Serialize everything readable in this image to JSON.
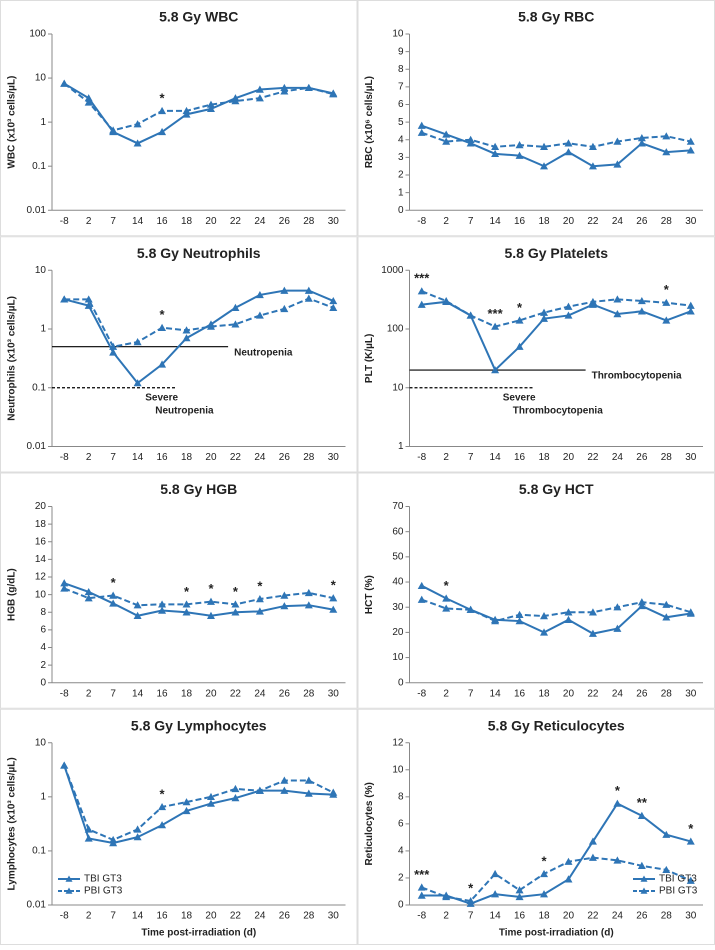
{
  "chart_data": [
    {
      "type": "line",
      "title": "5.8 Gy WBC",
      "ylabel": "WBC (x10³ cells/µL)",
      "log": true,
      "categories": [
        -8,
        2,
        7,
        14,
        16,
        18,
        20,
        22,
        24,
        26,
        28,
        30
      ],
      "ylim": [
        0.01,
        100
      ],
      "yticks": [
        0.01,
        0.1,
        1,
        10,
        100
      ],
      "series": [
        {
          "name": "TBI GT3",
          "color": "#2e75b6",
          "dashed": false,
          "values": [
            7.5,
            3.5,
            0.6,
            0.33,
            0.6,
            1.5,
            2.0,
            3.5,
            5.5,
            6,
            6,
            4.5
          ]
        },
        {
          "name": "PBI GT3",
          "color": "#2e75b6",
          "dashed": true,
          "values": [
            7.5,
            2.8,
            0.65,
            0.9,
            1.8,
            1.8,
            2.5,
            3,
            3.5,
            5,
            6,
            4.3
          ]
        }
      ],
      "annotations": [
        {
          "x": 16,
          "text": "*"
        }
      ]
    },
    {
      "type": "line",
      "title": "5.8 Gy RBC",
      "ylabel": "RBC (x10⁶ cells/µL)",
      "log": false,
      "categories": [
        -8,
        2,
        7,
        14,
        16,
        18,
        20,
        22,
        24,
        26,
        28,
        30
      ],
      "ylim": [
        0,
        10
      ],
      "yticks": [
        0,
        1,
        2,
        3,
        4,
        5,
        6,
        7,
        8,
        9,
        10
      ],
      "series": [
        {
          "name": "TBI GT3",
          "color": "#2e75b6",
          "dashed": false,
          "values": [
            4.8,
            4.3,
            3.8,
            3.2,
            3.1,
            2.5,
            3.3,
            2.5,
            2.6,
            3.8,
            3.3,
            3.4
          ]
        },
        {
          "name": "PBI GT3",
          "color": "#2e75b6",
          "dashed": true,
          "values": [
            4.4,
            3.9,
            4.0,
            3.6,
            3.7,
            3.6,
            3.8,
            3.6,
            3.9,
            4.1,
            4.2,
            3.9
          ]
        }
      ]
    },
    {
      "type": "line",
      "title": "5.8 Gy Neutrophils",
      "ylabel": "Neutrophils (x10³ cells/µL)",
      "log": true,
      "categories": [
        -8,
        2,
        7,
        14,
        16,
        18,
        20,
        22,
        24,
        26,
        28,
        30
      ],
      "ylim": [
        0.01,
        10
      ],
      "yticks": [
        0.01,
        0.1,
        1,
        10
      ],
      "series": [
        {
          "name": "TBI GT3",
          "color": "#2e75b6",
          "dashed": false,
          "values": [
            3.2,
            2.5,
            0.4,
            0.12,
            0.25,
            0.7,
            1.2,
            2.3,
            3.8,
            4.5,
            4.5,
            3.0
          ]
        },
        {
          "name": "PBI GT3",
          "color": "#2e75b6",
          "dashed": true,
          "values": [
            3.2,
            3.2,
            0.5,
            0.6,
            1.05,
            0.95,
            1.1,
            1.2,
            1.7,
            2.2,
            3.3,
            2.3
          ]
        }
      ],
      "annotations": [
        {
          "x": 16,
          "text": "*"
        }
      ],
      "reference_lines": [
        {
          "value": 0.5,
          "dashed": false,
          "label": [
            "Neutropenia"
          ]
        },
        {
          "value": 0.1,
          "dashed": true,
          "label": [
            "Severe",
            "Neutropenia"
          ]
        }
      ]
    },
    {
      "type": "line",
      "title": "5.8 Gy Platelets",
      "ylabel": "PLT (K/µL)",
      "log": true,
      "categories": [
        -8,
        2,
        7,
        14,
        16,
        18,
        20,
        22,
        24,
        26,
        28,
        30
      ],
      "ylim": [
        1,
        1000
      ],
      "yticks": [
        1,
        10,
        100,
        1000
      ],
      "series": [
        {
          "name": "TBI GT3",
          "color": "#2e75b6",
          "dashed": false,
          "values": [
            260,
            290,
            170,
            20,
            50,
            150,
            170,
            260,
            180,
            200,
            140,
            200
          ]
        },
        {
          "name": "PBI GT3",
          "color": "#2e75b6",
          "dashed": true,
          "values": [
            440,
            300,
            170,
            110,
            140,
            190,
            240,
            290,
            320,
            300,
            280,
            250
          ]
        }
      ],
      "annotations": [
        {
          "x": -8,
          "text": "***"
        },
        {
          "x": 14,
          "text": "***"
        },
        {
          "x": 16,
          "text": "*"
        },
        {
          "x": 28,
          "text": "*"
        }
      ],
      "reference_lines": [
        {
          "value": 20,
          "dashed": false,
          "label": [
            "Thrombocytopenia"
          ]
        },
        {
          "value": 10,
          "dashed": true,
          "label": [
            "Severe",
            "Thrombocytopenia"
          ]
        }
      ]
    },
    {
      "type": "line",
      "title": "5.8 Gy HGB",
      "ylabel": "HGB (g/dL)",
      "log": false,
      "categories": [
        -8,
        2,
        7,
        14,
        16,
        18,
        20,
        22,
        24,
        26,
        28,
        30
      ],
      "ylim": [
        0,
        20
      ],
      "yticks": [
        0,
        2,
        4,
        6,
        8,
        10,
        12,
        14,
        16,
        18,
        20
      ],
      "series": [
        {
          "name": "TBI GT3",
          "color": "#2e75b6",
          "dashed": false,
          "values": [
            11.3,
            10.3,
            9,
            7.6,
            8.2,
            8,
            7.6,
            8,
            8.1,
            8.7,
            8.8,
            8.3
          ]
        },
        {
          "name": "PBI GT3",
          "color": "#2e75b6",
          "dashed": true,
          "values": [
            10.7,
            9.6,
            9.9,
            8.8,
            8.9,
            8.9,
            9.2,
            8.9,
            9.5,
            9.9,
            10.2,
            9.6
          ]
        }
      ],
      "annotations": [
        {
          "x": 7,
          "text": "*"
        },
        {
          "x": 18,
          "text": "*"
        },
        {
          "x": 20,
          "text": "*"
        },
        {
          "x": 22,
          "text": "*"
        },
        {
          "x": 24,
          "text": "*"
        },
        {
          "x": 30,
          "text": "*"
        }
      ]
    },
    {
      "type": "line",
      "title": "5.8 Gy HCT",
      "ylabel": "HCT (%)",
      "log": false,
      "categories": [
        -8,
        2,
        7,
        14,
        16,
        18,
        20,
        22,
        24,
        26,
        28,
        30
      ],
      "ylim": [
        0,
        70
      ],
      "yticks": [
        0,
        10,
        20,
        30,
        40,
        50,
        60,
        70
      ],
      "series": [
        {
          "name": "TBI GT3",
          "color": "#2e75b6",
          "dashed": false,
          "values": [
            38.5,
            33.5,
            29,
            25,
            24.5,
            20,
            25,
            19.5,
            21.5,
            30.5,
            26,
            27.5
          ]
        },
        {
          "name": "PBI GT3",
          "color": "#2e75b6",
          "dashed": true,
          "values": [
            33,
            29.5,
            29,
            24.5,
            27,
            26.5,
            28,
            28,
            30,
            32,
            31,
            28
          ]
        }
      ],
      "annotations": [
        {
          "x": 2,
          "text": "*"
        }
      ]
    },
    {
      "type": "line",
      "title": "5.8 Gy Lymphocytes",
      "ylabel": "Lymphocytes (x10³ cells/µL)",
      "xlabel": "Time post-irradiation (d)",
      "log": true,
      "categories": [
        -8,
        2,
        7,
        14,
        16,
        18,
        20,
        22,
        24,
        26,
        28,
        30
      ],
      "ylim": [
        0.01,
        10
      ],
      "yticks": [
        0.01,
        0.1,
        1,
        10
      ],
      "legend": "lower left",
      "series": [
        {
          "name": "TBI GT3",
          "color": "#2e75b6",
          "dashed": false,
          "values": [
            3.8,
            0.17,
            0.14,
            0.18,
            0.3,
            0.55,
            0.75,
            0.95,
            1.3,
            1.3,
            1.15,
            1.1
          ]
        },
        {
          "name": "PBI GT3",
          "color": "#2e75b6",
          "dashed": true,
          "values": [
            3.8,
            0.25,
            0.16,
            0.25,
            0.65,
            0.8,
            1.0,
            1.4,
            1.3,
            2.0,
            2.0,
            1.2
          ]
        }
      ],
      "annotations": [
        {
          "x": 16,
          "text": "*"
        }
      ]
    },
    {
      "type": "line",
      "title": "5.8 Gy Reticulocytes",
      "ylabel": "Reticulocytes (%)",
      "xlabel": "Time post-irradiation (d)",
      "log": false,
      "categories": [
        -8,
        2,
        7,
        14,
        16,
        18,
        20,
        22,
        24,
        26,
        28,
        30
      ],
      "ylim": [
        0,
        12
      ],
      "yticks": [
        0,
        2,
        4,
        6,
        8,
        10,
        12
      ],
      "legend": "lower right",
      "series": [
        {
          "name": "TBI GT3",
          "color": "#2e75b6",
          "dashed": false,
          "values": [
            0.7,
            0.7,
            0.1,
            0.8,
            0.6,
            0.8,
            1.9,
            4.7,
            7.5,
            6.6,
            5.2,
            4.7
          ]
        },
        {
          "name": "PBI GT3",
          "color": "#2e75b6",
          "dashed": true,
          "values": [
            1.3,
            0.6,
            0.3,
            2.3,
            1.1,
            2.3,
            3.2,
            3.5,
            3.3,
            2.9,
            2.6,
            1.8
          ]
        }
      ],
      "annotations": [
        {
          "x": -8,
          "text": "***"
        },
        {
          "x": 7,
          "text": "*"
        },
        {
          "x": 18,
          "text": "*"
        },
        {
          "x": 24,
          "text": "*"
        },
        {
          "x": 26,
          "text": "**"
        },
        {
          "x": 30,
          "text": "*"
        }
      ]
    }
  ]
}
